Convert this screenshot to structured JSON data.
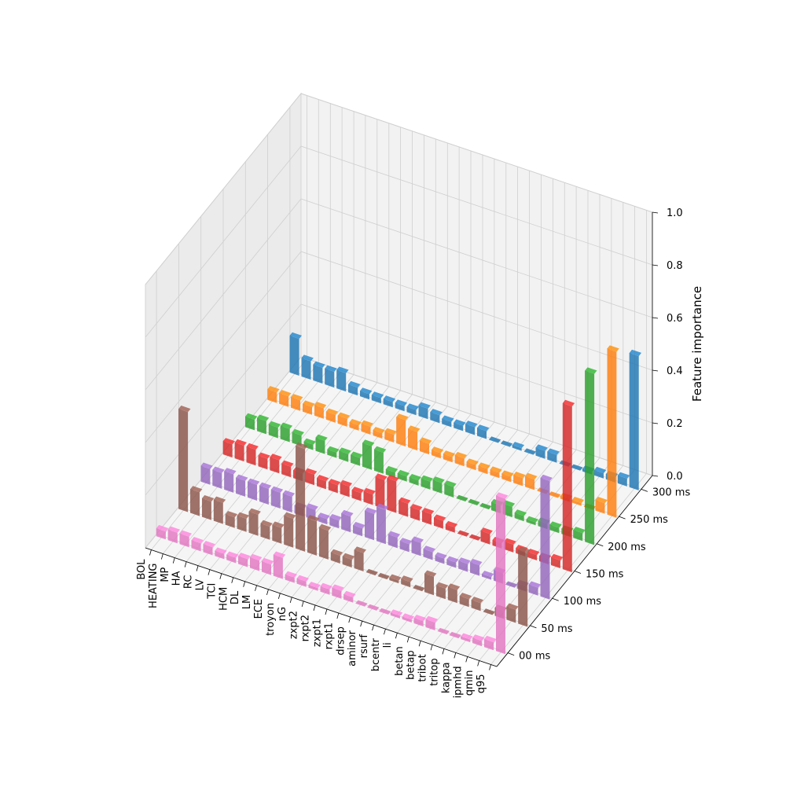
{
  "chart_data": {
    "type": "bar3d",
    "zlabel": "Feature importance",
    "zlim": [
      0,
      1
    ],
    "z_ticks": [
      "0.0",
      "0.2",
      "0.4",
      "0.6",
      "0.8",
      "1.0"
    ],
    "features": [
      "q95",
      "qmin",
      "ipmhd",
      "kappa",
      "tritop",
      "tribot",
      "betap",
      "betan",
      "li",
      "bcentr",
      "rsurf",
      "aminor",
      "drsep",
      "rxpt1",
      "zxpt1",
      "rxpt2",
      "zxpt2",
      "nG",
      "troyon",
      "ECE",
      "LM",
      "DL",
      "HCM",
      "TCI",
      "LV",
      "RC",
      "HA",
      "MP",
      "HEATING",
      "BOL"
    ],
    "times": [
      "00 ms",
      "50 ms",
      "100 ms",
      "150 ms",
      "200 ms",
      "250 ms",
      "300 ms"
    ],
    "colors": [
      "#e377c2",
      "#8c564b",
      "#9467bd",
      "#d62728",
      "#2ca02c",
      "#ff7f0e",
      "#1f77b4"
    ],
    "grid": true,
    "series": [
      {
        "values": [
          0.59,
          0.03,
          0.02,
          0.01,
          0.0,
          0.0,
          0.03,
          0.02,
          0.01,
          0.01,
          0.0,
          0.0,
          0.0,
          0.02,
          0.03,
          0.02,
          0.01,
          0.02,
          0.02,
          0.08,
          0.04,
          0.04,
          0.03,
          0.02,
          0.02,
          0.03,
          0.03,
          0.04,
          0.04,
          0.03
        ]
      },
      {
        "values": [
          0.28,
          0.05,
          0.03,
          0.0,
          0.03,
          0.03,
          0.05,
          0.04,
          0.07,
          0.0,
          0.02,
          0.01,
          0.0,
          0.0,
          0.07,
          0.03,
          0.03,
          0.11,
          0.13,
          0.39,
          0.11,
          0.06,
          0.05,
          0.08,
          0.05,
          0.04,
          0.08,
          0.07,
          0.09,
          0.38
        ]
      },
      {
        "values": [
          0.45,
          0.03,
          0.02,
          0.0,
          0.04,
          0.01,
          0.04,
          0.03,
          0.02,
          0.02,
          0.03,
          0.05,
          0.03,
          0.04,
          0.13,
          0.1,
          0.03,
          0.06,
          0.03,
          0.02,
          0.04,
          0.03,
          0.06,
          0.06,
          0.06,
          0.06,
          0.06,
          0.07,
          0.06,
          0.06
        ]
      },
      {
        "values": [
          0.63,
          0.03,
          0.02,
          0.02,
          0.02,
          0.03,
          0.02,
          0.04,
          0.0,
          0.0,
          0.02,
          0.03,
          0.04,
          0.04,
          0.05,
          0.12,
          0.11,
          0.04,
          0.03,
          0.04,
          0.03,
          0.03,
          0.04,
          0.03,
          0.04,
          0.05,
          0.04,
          0.06,
          0.06,
          0.05
        ]
      },
      {
        "values": [
          0.65,
          0.03,
          0.02,
          0.02,
          0.02,
          0.01,
          0.02,
          0.04,
          0.03,
          0.0,
          0.0,
          0.0,
          0.04,
          0.04,
          0.03,
          0.02,
          0.02,
          0.02,
          0.08,
          0.09,
          0.03,
          0.03,
          0.02,
          0.05,
          0.02,
          0.04,
          0.05,
          0.04,
          0.05,
          0.04
        ]
      },
      {
        "values": [
          0.63,
          0.04,
          0.0,
          0.01,
          0.01,
          0.0,
          0.0,
          0.04,
          0.03,
          0.02,
          0.02,
          0.02,
          0.02,
          0.03,
          0.02,
          0.02,
          0.04,
          0.07,
          0.1,
          0.03,
          0.02,
          0.03,
          0.02,
          0.03,
          0.03,
          0.04,
          0.03,
          0.04,
          0.04,
          0.04
        ]
      },
      {
        "values": [
          0.51,
          0.03,
          0.02,
          0.02,
          0.01,
          0.0,
          0.0,
          0.03,
          0.03,
          0.0,
          0.01,
          0.0,
          0.0,
          0.03,
          0.03,
          0.02,
          0.02,
          0.03,
          0.04,
          0.02,
          0.02,
          0.02,
          0.02,
          0.02,
          0.03,
          0.07,
          0.06,
          0.06,
          0.07,
          0.14
        ]
      }
    ]
  }
}
